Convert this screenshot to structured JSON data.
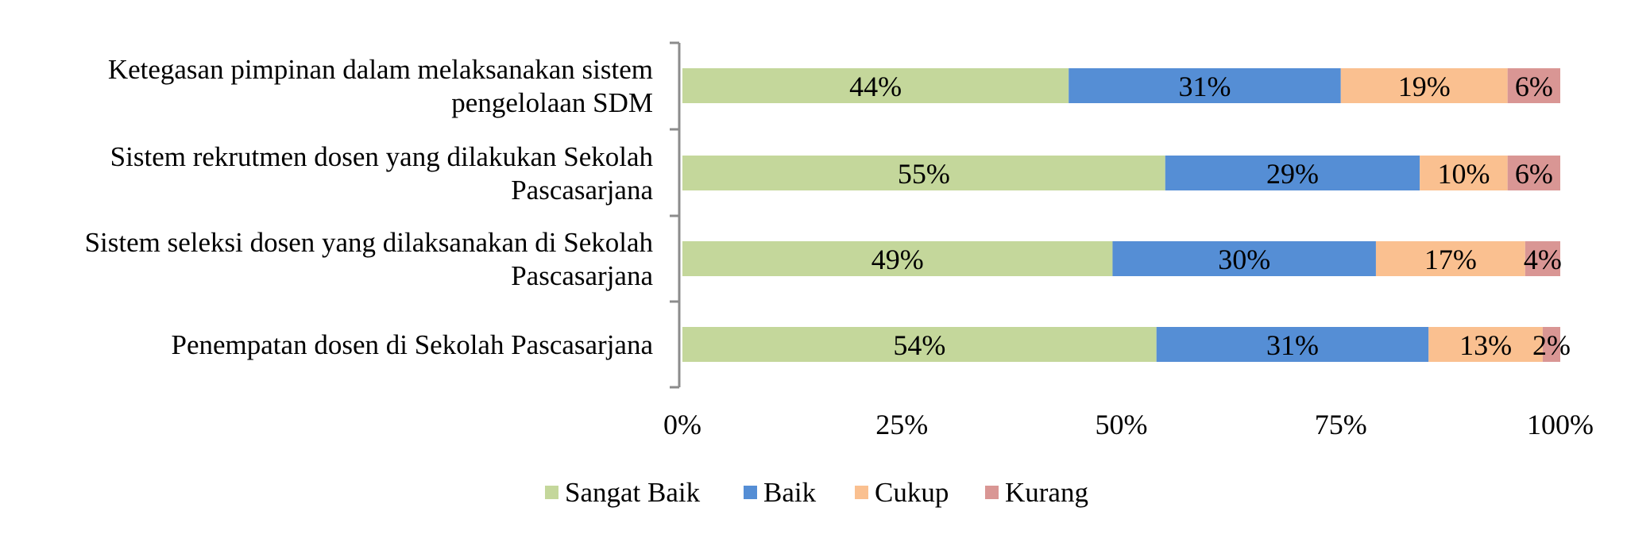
{
  "chart_data": {
    "type": "bar",
    "orientation": "horizontal",
    "stacked": true,
    "percent_stacked": true,
    "categories": [
      [
        "Ketegasan pimpinan dalam melaksanakan sistem",
        "pengelolaan SDM"
      ],
      [
        "Sistem rekrutmen dosen yang dilakukan Sekolah",
        "Pascasarjana"
      ],
      [
        "Sistem seleksi dosen yang dilaksanakan di Sekolah",
        "Pascasarjana"
      ],
      [
        "Penempatan dosen di Sekolah Pascasarjana"
      ]
    ],
    "series": [
      {
        "name": "Sangat Baik",
        "color": "#c4d79b",
        "values": [
          44,
          55,
          49,
          54
        ],
        "labels": [
          "44%",
          "55%",
          "49%",
          "54%"
        ]
      },
      {
        "name": "Baik",
        "color": "#558ed5",
        "values": [
          31,
          29,
          30,
          31
        ],
        "labels": [
          "31%",
          "29%",
          "30%",
          "31%"
        ]
      },
      {
        "name": "Cukup",
        "color": "#fac090",
        "values": [
          19,
          10,
          17,
          13
        ],
        "labels": [
          "19%",
          "10%",
          "17%",
          "13%"
        ]
      },
      {
        "name": "Kurang",
        "color": "#d99694",
        "values": [
          6,
          6,
          4,
          2
        ],
        "labels": [
          "6%",
          "6%",
          "4%",
          "2%"
        ]
      }
    ],
    "xlim": [
      0,
      100
    ],
    "xticks": [
      "0%",
      "25%",
      "50%",
      "75%",
      "100%"
    ],
    "grid": false,
    "legend": "bottom"
  }
}
